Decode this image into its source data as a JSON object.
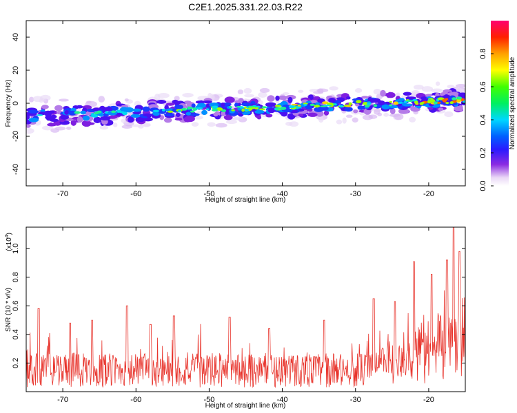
{
  "title": "C2E1.2025.331.22.03.R22",
  "chart_data": [
    {
      "type": "heatmap",
      "xlabel": "Height of straight line (km)",
      "ylabel": "Frequency (Hz)",
      "xlim": [
        -75,
        -15
      ],
      "ylim": [
        -50,
        50
      ],
      "xticks": [
        -70,
        -60,
        -50,
        -40,
        -30,
        -20
      ],
      "yticks": [
        -40,
        -20,
        0,
        20,
        40
      ],
      "band_center_start": -8,
      "band_center_end": 2,
      "colorbar": {
        "label": "Normalized spectral amplitude",
        "range": [
          0,
          1
        ],
        "ticks": [
          "0.0",
          "0.2",
          "0.4",
          "0.6",
          "0.8"
        ]
      }
    },
    {
      "type": "line",
      "xlabel": "Height of straight line (km)",
      "ylabel": "SNR (10 * v/v)",
      "multiplier": "(x10",
      "multiplier_exp": "4",
      "xlim": [
        -75,
        -15
      ],
      "ylim": [
        0,
        1.15
      ],
      "xticks": [
        -70,
        -60,
        -50,
        -40,
        -30,
        -20
      ],
      "yticks": [
        0.2,
        0.4,
        0.6,
        0.8,
        1.0
      ],
      "series": [
        {
          "name": "SNR",
          "color": "#e8342c",
          "baseline": 0.15,
          "peaks": [
            {
              "x": -73.3,
              "y": 0.58
            },
            {
              "x": -69.0,
              "y": 0.48
            },
            {
              "x": -66.0,
              "y": 0.5
            },
            {
              "x": -61.2,
              "y": 0.6
            },
            {
              "x": -58.0,
              "y": 0.47
            },
            {
              "x": -54.8,
              "y": 0.53
            },
            {
              "x": -47.2,
              "y": 0.52
            },
            {
              "x": -41.8,
              "y": 0.44
            },
            {
              "x": -34.3,
              "y": 0.5
            },
            {
              "x": -27.5,
              "y": 0.65
            },
            {
              "x": -24.6,
              "y": 0.63
            },
            {
              "x": -22.0,
              "y": 0.91
            },
            {
              "x": -19.6,
              "y": 0.82
            },
            {
              "x": -17.5,
              "y": 0.92
            },
            {
              "x": -16.6,
              "y": 1.15
            },
            {
              "x": -15.8,
              "y": 0.98
            }
          ]
        }
      ]
    }
  ]
}
